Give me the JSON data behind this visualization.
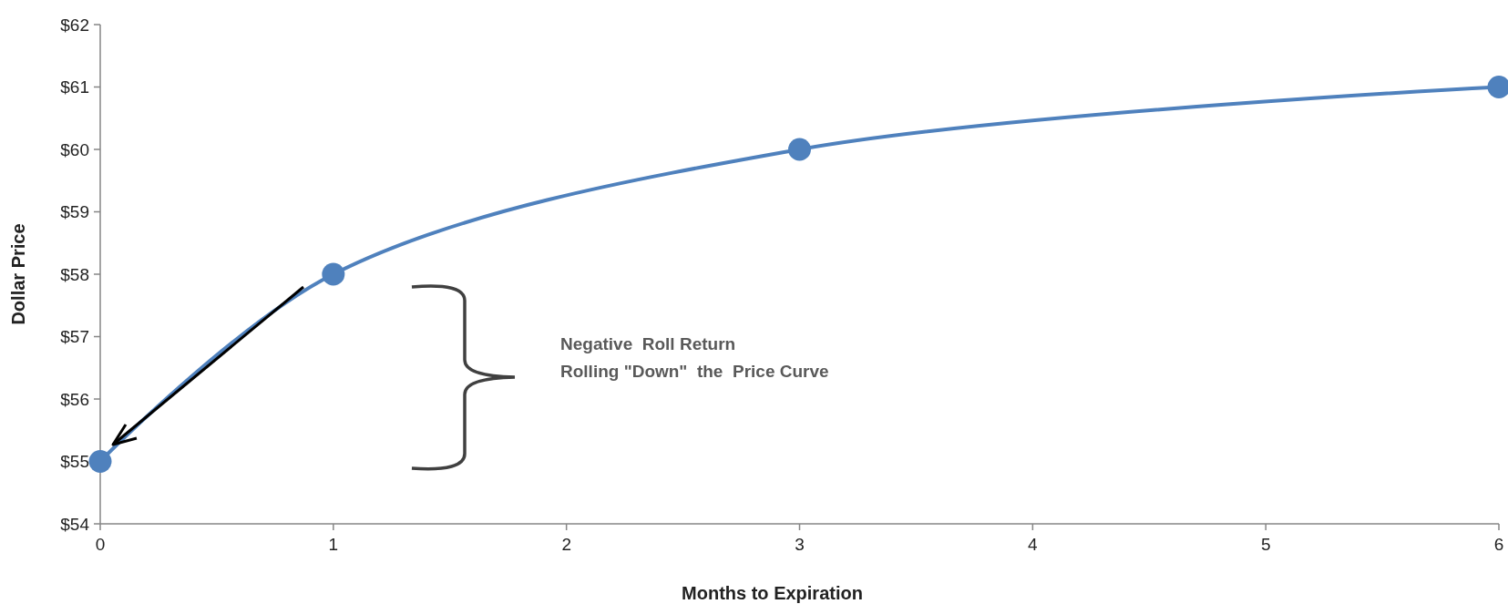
{
  "chart_data": {
    "type": "line",
    "xlabel": "Months to Expiration",
    "ylabel": "Dollar Price",
    "x": [
      0,
      1,
      3,
      6
    ],
    "series": [
      {
        "color": "#4f81bd",
        "values": [
          55,
          58,
          60,
          61
        ]
      }
    ],
    "xlim": [
      0,
      6
    ],
    "xticks": [
      0,
      1,
      2,
      3,
      4,
      5,
      6
    ],
    "ylim": [
      54,
      62
    ],
    "yticks": [
      {
        "value": 54,
        "label": "$54"
      },
      {
        "value": 55,
        "label": "$55"
      },
      {
        "value": 56,
        "label": "$56"
      },
      {
        "value": 57,
        "label": "$57"
      },
      {
        "value": 58,
        "label": "$58"
      },
      {
        "value": 59,
        "label": "$59"
      },
      {
        "value": 60,
        "label": "$60"
      },
      {
        "value": 61,
        "label": "$61"
      },
      {
        "value": 62,
        "label": "$62"
      }
    ],
    "marker": "circle",
    "grid": false,
    "annotations": [
      "Negative  Roll Return",
      "Rolling \"Down\"  the  Price Curve"
    ]
  }
}
